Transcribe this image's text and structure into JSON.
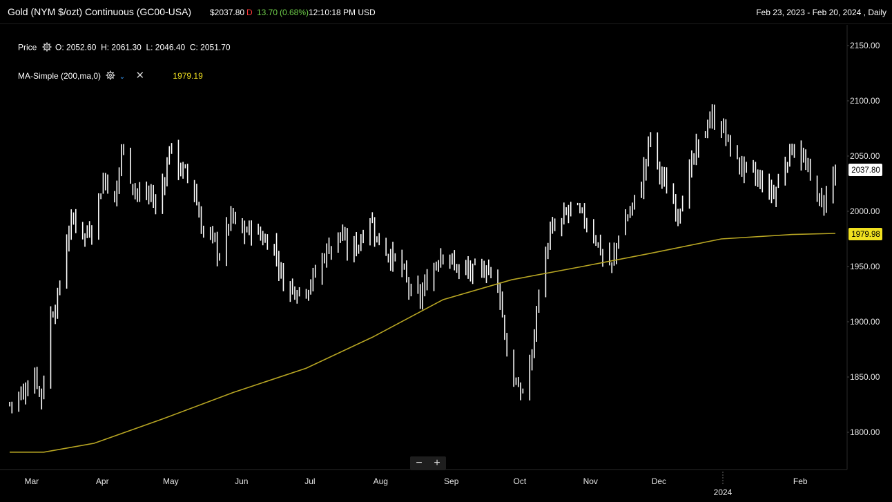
{
  "header": {
    "title": "Gold (NYM $/ozt) Continuous (GC00-USA)",
    "price": "$2037.80",
    "delay_flag": "D",
    "change": "13.70",
    "change_pct": "(0.68%)",
    "time": "12:10:18 PM USD",
    "range": "Feb 23, 2023 - Feb 20, 2024 , Daily"
  },
  "legend": {
    "price_label": "Price",
    "ohlc": "O: 2052.60  H: 2061.30  L: 2046.40  C: 2051.70",
    "ma_label": "MA-Simple (200,ma,0)",
    "ma_value": "1979.19"
  },
  "axis": {
    "y_ticks": [
      "2150.00",
      "2100.00",
      "2050.00",
      "2000.00",
      "1950.00",
      "1900.00",
      "1850.00",
      "1800.00"
    ],
    "x_ticks": [
      "Mar",
      "Apr",
      "May",
      "Jun",
      "Jul",
      "Aug",
      "Sep",
      "Oct",
      "Nov",
      "Dec",
      "Feb"
    ],
    "year_label": "2024",
    "last_price_label": "2037.80",
    "ma_price_label": "1979.98"
  },
  "zoom": {
    "minus": "−",
    "plus": "+"
  },
  "colors": {
    "background": "#000000",
    "bars": "#ffffff",
    "ma": "#b8a623",
    "ma_badge": "#f0e020"
  },
  "chart_data": {
    "type": "line",
    "title": "Gold (NYM $/ozt) Continuous (GC00-USA)",
    "xlabel": "",
    "ylabel": "",
    "ylim": [
      1775,
      2160
    ],
    "x_range": [
      "2023-02-23",
      "2024-02-20"
    ],
    "series": [
      {
        "name": "Price",
        "style": "OHLC bars (daily)",
        "points": [
          [
            "2023-02-23",
            1826
          ],
          [
            "2023-03-01",
            1836
          ],
          [
            "2023-03-06",
            1853
          ],
          [
            "2023-03-09",
            1832
          ],
          [
            "2023-03-13",
            1905
          ],
          [
            "2023-03-16",
            1920
          ],
          [
            "2023-03-20",
            1975
          ],
          [
            "2023-03-23",
            1995
          ],
          [
            "2023-03-28",
            1978
          ],
          [
            "2023-03-31",
            1987
          ],
          [
            "2023-04-04",
            2020
          ],
          [
            "2023-04-06",
            2032
          ],
          [
            "2023-04-10",
            2004
          ],
          [
            "2023-04-13",
            2058
          ],
          [
            "2023-04-18",
            2025
          ],
          [
            "2023-04-21",
            2013
          ],
          [
            "2023-04-26",
            2016
          ],
          [
            "2023-04-28",
            2003
          ],
          [
            "2023-05-03",
            2040
          ],
          [
            "2023-05-04",
            2060
          ],
          [
            "2023-05-08",
            2040
          ],
          [
            "2023-05-11",
            2035
          ],
          [
            "2023-05-15",
            2018
          ],
          [
            "2023-05-18",
            1985
          ],
          [
            "2023-05-23",
            1975
          ],
          [
            "2023-05-26",
            1960
          ],
          [
            "2023-05-31",
            1995
          ],
          [
            "2023-06-05",
            1980
          ],
          [
            "2023-06-09",
            1985
          ],
          [
            "2023-06-14",
            1975
          ],
          [
            "2023-06-19",
            1968
          ],
          [
            "2023-06-23",
            1935
          ],
          [
            "2023-06-28",
            1930
          ],
          [
            "2023-07-03",
            1930
          ],
          [
            "2023-07-07",
            1943
          ],
          [
            "2023-07-12",
            1965
          ],
          [
            "2023-07-18",
            1980
          ],
          [
            "2023-07-21",
            1965
          ],
          [
            "2023-07-26",
            1971
          ],
          [
            "2023-07-31",
            1995
          ],
          [
            "2023-08-03",
            1975
          ],
          [
            "2023-08-08",
            1962
          ],
          [
            "2023-08-14",
            1948
          ],
          [
            "2023-08-18",
            1925
          ],
          [
            "2023-08-22",
            1922
          ],
          [
            "2023-08-28",
            1950
          ],
          [
            "2023-09-01",
            1966
          ],
          [
            "2023-09-06",
            1950
          ],
          [
            "2023-09-12",
            1945
          ],
          [
            "2023-09-18",
            1945
          ],
          [
            "2023-09-21",
            1950
          ],
          [
            "2023-09-26",
            1925
          ],
          [
            "2023-09-29",
            1870
          ],
          [
            "2023-10-04",
            1835
          ],
          [
            "2023-10-06",
            1838
          ],
          [
            "2023-10-10",
            1870
          ],
          [
            "2023-10-13",
            1930
          ],
          [
            "2023-10-18",
            1980
          ],
          [
            "2023-10-23",
            1990
          ],
          [
            "2023-10-27",
            2005
          ],
          [
            "2023-11-01",
            1995
          ],
          [
            "2023-11-06",
            1980
          ],
          [
            "2023-11-10",
            1960
          ],
          [
            "2023-11-14",
            1950
          ],
          [
            "2023-11-17",
            1980
          ],
          [
            "2023-11-22",
            2000
          ],
          [
            "2023-11-27",
            2025
          ],
          [
            "2023-12-01",
            2070
          ],
          [
            "2023-12-04",
            2040
          ],
          [
            "2023-12-08",
            2020
          ],
          [
            "2023-12-13",
            2000
          ],
          [
            "2023-12-18",
            2035
          ],
          [
            "2023-12-22",
            2060
          ],
          [
            "2023-12-27",
            2085
          ],
          [
            "2024-01-02",
            2075
          ],
          [
            "2024-01-05",
            2055
          ],
          [
            "2024-01-10",
            2040
          ],
          [
            "2024-01-16",
            2030
          ],
          [
            "2024-01-19",
            2025
          ],
          [
            "2024-01-24",
            2015
          ],
          [
            "2024-01-30",
            2050
          ],
          [
            "2024-02-02",
            2060
          ],
          [
            "2024-02-06",
            2045
          ],
          [
            "2024-02-09",
            2030
          ],
          [
            "2024-02-14",
            2005
          ],
          [
            "2024-02-20",
            2037.8
          ]
        ]
      },
      {
        "name": "MA-Simple (200,ma,0)",
        "points": [
          [
            "2023-02-23",
            1782
          ],
          [
            "2023-03-10",
            1782
          ],
          [
            "2023-04-01",
            1790
          ],
          [
            "2023-05-01",
            1812
          ],
          [
            "2023-06-01",
            1836
          ],
          [
            "2023-07-03",
            1858
          ],
          [
            "2023-08-01",
            1886
          ],
          [
            "2023-09-01",
            1920
          ],
          [
            "2023-10-01",
            1938
          ],
          [
            "2023-11-01",
            1950
          ],
          [
            "2023-12-01",
            1962
          ],
          [
            "2024-01-01",
            1975
          ],
          [
            "2024-02-01",
            1979
          ],
          [
            "2024-02-20",
            1980
          ]
        ]
      }
    ]
  }
}
